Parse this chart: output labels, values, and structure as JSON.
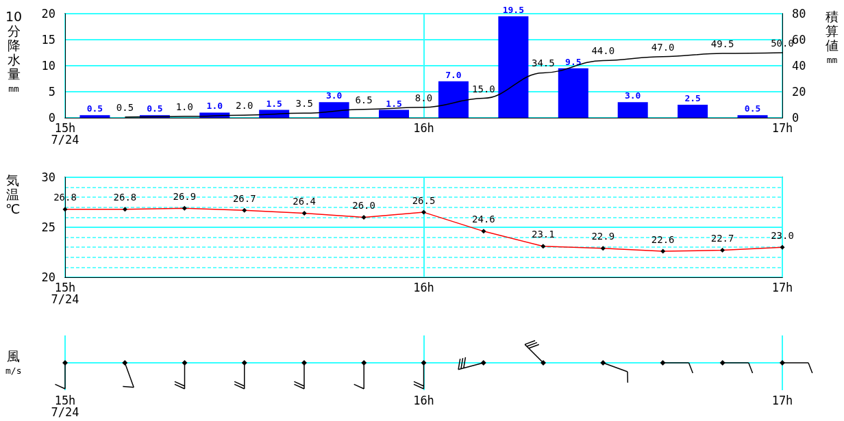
{
  "chart_data": [
    {
      "type": "bar",
      "ylabel": "10分降水量 mm",
      "y2label": "積算値 mm",
      "xlim": [
        15,
        17
      ],
      "xticks": [
        {
          "value": 15,
          "label": "15h\n7/24"
        },
        {
          "value": 16,
          "label": "16h"
        },
        {
          "value": 17,
          "label": "17h"
        }
      ],
      "ylim": [
        0,
        20
      ],
      "yticks": [
        0,
        5,
        10,
        15,
        20
      ],
      "y2lim": [
        0,
        80
      ],
      "y2ticks": [
        0,
        20,
        40,
        60,
        80
      ],
      "grid": true,
      "marker": "none",
      "series": [
        {
          "type": "bar",
          "color": "#0000ff",
          "x": [
            15.083,
            15.25,
            15.417,
            15.583,
            15.75,
            15.917,
            16.083,
            16.25,
            16.417,
            16.583,
            16.75,
            16.917
          ],
          "values": [
            0.5,
            0.5,
            1.0,
            1.5,
            3.0,
            1.5,
            7.0,
            19.5,
            9.5,
            3.0,
            2.5,
            0.5
          ],
          "value_labels": [
            "0.5",
            "0.5",
            "1.0",
            "1.5",
            "3.0",
            "1.5",
            "7.0",
            "19.5",
            "9.5",
            "3.0",
            "2.5",
            "0.5"
          ]
        },
        {
          "type": "line",
          "axis": "y2",
          "color": "#000000",
          "x": [
            15.167,
            15.333,
            15.5,
            15.667,
            15.833,
            16,
            16.167,
            16.333,
            16.5,
            16.667,
            16.833,
            17
          ],
          "values": [
            0.5,
            1.0,
            2.0,
            3.5,
            6.5,
            8.0,
            15.0,
            34.5,
            44.0,
            47.0,
            49.5,
            50.0
          ],
          "value_labels": [
            "0.5",
            "1.0",
            "2.0",
            "3.5",
            "6.5",
            "8.0",
            "15.0",
            "34.5",
            "44.0",
            "47.0",
            "49.5",
            "50.0"
          ]
        }
      ]
    },
    {
      "type": "line",
      "ylabel": "気温 ℃",
      "xlim": [
        15,
        17
      ],
      "xticks": [
        {
          "value": 15,
          "label": "15h\n7/24"
        },
        {
          "value": 16,
          "label": "16h"
        },
        {
          "value": 17,
          "label": "17h"
        }
      ],
      "ylim": [
        20,
        30
      ],
      "yticks": [
        20,
        {
          "value": 21,
          "label": null
        },
        {
          "value": 22,
          "label": null
        },
        {
          "value": 23,
          "label": null
        },
        {
          "value": 24,
          "label": null
        },
        25,
        {
          "value": 26,
          "label": null
        },
        {
          "value": 27,
          "label": null
        },
        {
          "value": 28,
          "label": null
        },
        {
          "value": 29,
          "label": null
        },
        30
      ],
      "grid": true,
      "marker": "diamond",
      "series": [
        {
          "color": "#ff0000",
          "x": [
            15,
            15.167,
            15.333,
            15.5,
            15.667,
            15.833,
            16,
            16.167,
            16.333,
            16.5,
            16.667,
            16.833,
            17
          ],
          "values": [
            26.8,
            26.8,
            26.9,
            26.7,
            26.4,
            26.0,
            26.5,
            24.6,
            23.1,
            22.9,
            22.6,
            22.7,
            23.0
          ],
          "value_labels": [
            "26.8",
            "26.8",
            "26.9",
            "26.7",
            "26.4",
            "26.0",
            "26.5",
            "24.6",
            "23.1",
            "22.9",
            "22.6",
            "22.7",
            "23.0"
          ]
        }
      ]
    },
    {
      "type": "other",
      "ylabel": "風 m/s",
      "annotations": [
        "15h\n7/24",
        "16h",
        "17h"
      ]
    }
  ]
}
